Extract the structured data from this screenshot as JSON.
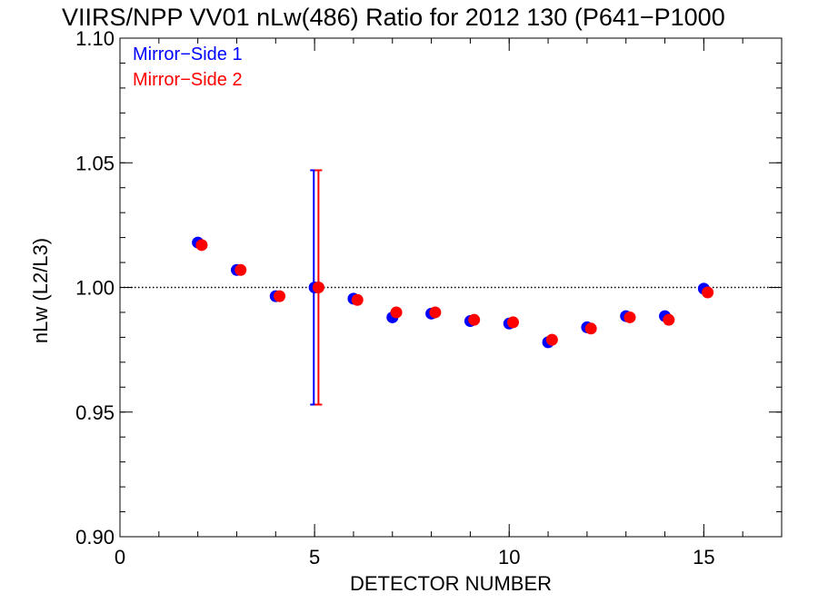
{
  "chart_data": {
    "type": "scatter",
    "title": "VIIRS/NPP VV01 nLw(486) Ratio for 2012 130 (P641−P1000",
    "xlabel": "DETECTOR NUMBER",
    "ylabel": "nLw (L2/L3)",
    "xlim": [
      0,
      17
    ],
    "ylim": [
      0.9,
      1.1
    ],
    "x_ticks": [
      0,
      5,
      10,
      15
    ],
    "x_tick_labels": [
      "0",
      "5",
      "10",
      "15"
    ],
    "x_minor_step": 1,
    "y_ticks": [
      0.9,
      0.95,
      1.0,
      1.05,
      1.1
    ],
    "y_tick_labels": [
      "0.90",
      "0.95",
      "1.00",
      "1.05",
      "1.10"
    ],
    "y_minor_step": 0.01,
    "reference_line": {
      "y": 1.0,
      "style": "dotted"
    },
    "legend_position": "top-left",
    "series": [
      {
        "name": "Mirror−Side 1",
        "color": "#0000ff",
        "points": [
          {
            "x": 2,
            "y": 1.018
          },
          {
            "x": 3,
            "y": 1.007
          },
          {
            "x": 4,
            "y": 0.9965
          },
          {
            "x": 5,
            "y": 1.0
          },
          {
            "x": 6,
            "y": 0.9955
          },
          {
            "x": 7,
            "y": 0.988
          },
          {
            "x": 8,
            "y": 0.9895
          },
          {
            "x": 9,
            "y": 0.9865
          },
          {
            "x": 10,
            "y": 0.9855
          },
          {
            "x": 11,
            "y": 0.978
          },
          {
            "x": 12,
            "y": 0.984
          },
          {
            "x": 13,
            "y": 0.9885
          },
          {
            "x": 14,
            "y": 0.9885
          },
          {
            "x": 15,
            "y": 0.9995
          }
        ],
        "error_bar": {
          "x": 4.98,
          "low": 0.953,
          "high": 1.047
        }
      },
      {
        "name": "Mirror−Side 2",
        "color": "#ff0000",
        "points": [
          {
            "x": 2.1,
            "y": 1.017
          },
          {
            "x": 3.1,
            "y": 1.007
          },
          {
            "x": 4.1,
            "y": 0.9965
          },
          {
            "x": 5.1,
            "y": 1.0
          },
          {
            "x": 6.1,
            "y": 0.995
          },
          {
            "x": 7.1,
            "y": 0.99
          },
          {
            "x": 8.1,
            "y": 0.99
          },
          {
            "x": 9.1,
            "y": 0.987
          },
          {
            "x": 10.1,
            "y": 0.986
          },
          {
            "x": 11.1,
            "y": 0.979
          },
          {
            "x": 12.1,
            "y": 0.9835
          },
          {
            "x": 13.1,
            "y": 0.988
          },
          {
            "x": 14.1,
            "y": 0.987
          },
          {
            "x": 15.1,
            "y": 0.998
          }
        ],
        "error_bar": {
          "x": 5.1,
          "low": 0.953,
          "high": 1.047
        }
      }
    ]
  }
}
